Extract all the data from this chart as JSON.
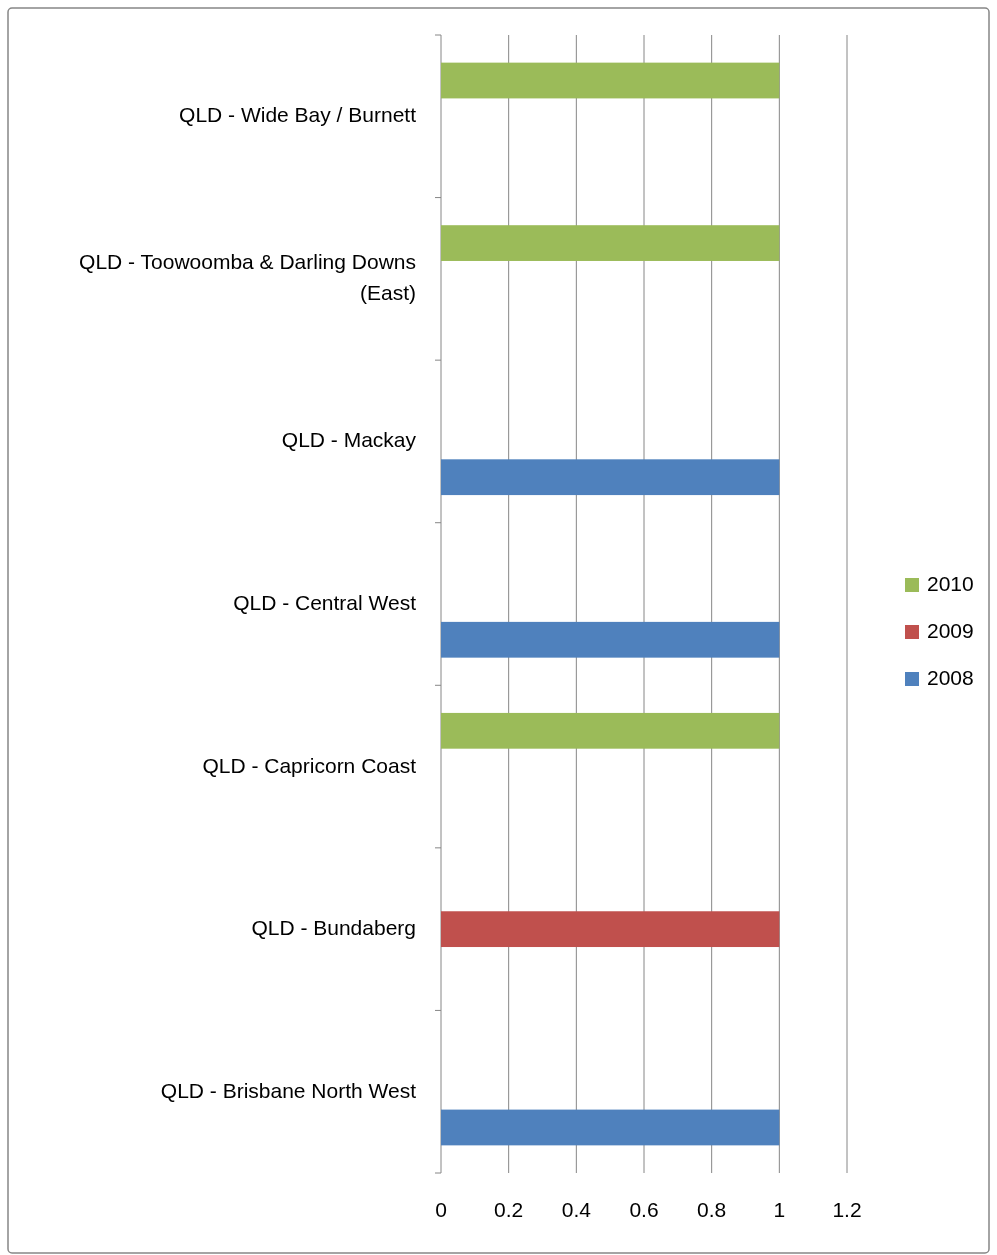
{
  "chart_data": {
    "type": "bar",
    "orientation": "horizontal",
    "categories": [
      "QLD - Wide Bay / Burnett",
      "QLD - Toowoomba & Darling Downs (East)",
      "QLD - Mackay",
      "QLD - Central West",
      "QLD - Capricorn Coast",
      "QLD - Bundaberg",
      "QLD - Brisbane North West"
    ],
    "series": [
      {
        "name": "2010",
        "color": "#9bbb59",
        "values": [
          1,
          1,
          null,
          null,
          1,
          null,
          null
        ]
      },
      {
        "name": "2009",
        "color": "#c0504d",
        "values": [
          null,
          null,
          null,
          null,
          null,
          1,
          null
        ]
      },
      {
        "name": "2008",
        "color": "#4f81bd",
        "values": [
          null,
          null,
          1,
          1,
          null,
          null,
          1
        ]
      }
    ],
    "xlim": [
      0,
      1.2
    ],
    "xticks": [
      0,
      0.2,
      0.4,
      0.6,
      0.8,
      1,
      1.2
    ],
    "grid": "x",
    "legend": "right"
  }
}
